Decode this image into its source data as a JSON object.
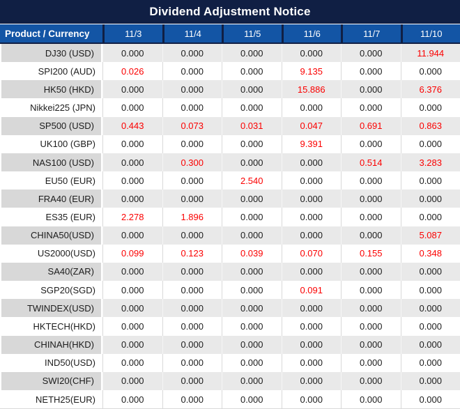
{
  "chart_data": {
    "type": "table",
    "title": "Dividend Adjustment Notice",
    "corner_header": "Product / Currency",
    "date_columns": [
      "11/3",
      "11/4",
      "11/5",
      "11/6",
      "11/7",
      "11/10"
    ],
    "rows": [
      {
        "product": "DJ30 (USD)",
        "values": [
          "0.000",
          "0.000",
          "0.000",
          "0.000",
          "0.000",
          "11.944"
        ],
        "highlighted": [
          false,
          false,
          false,
          false,
          false,
          true
        ]
      },
      {
        "product": "SPI200 (AUD)",
        "values": [
          "0.026",
          "0.000",
          "0.000",
          "9.135",
          "0.000",
          "0.000"
        ],
        "highlighted": [
          true,
          false,
          false,
          true,
          false,
          false
        ]
      },
      {
        "product": "HK50 (HKD)",
        "values": [
          "0.000",
          "0.000",
          "0.000",
          "15.886",
          "0.000",
          "6.376"
        ],
        "highlighted": [
          false,
          false,
          false,
          true,
          false,
          true
        ]
      },
      {
        "product": "Nikkei225 (JPN)",
        "values": [
          "0.000",
          "0.000",
          "0.000",
          "0.000",
          "0.000",
          "0.000"
        ],
        "highlighted": [
          false,
          false,
          false,
          false,
          false,
          false
        ]
      },
      {
        "product": "SP500 (USD)",
        "values": [
          "0.443",
          "0.073",
          "0.031",
          "0.047",
          "0.691",
          "0.863"
        ],
        "highlighted": [
          true,
          true,
          true,
          true,
          true,
          true
        ]
      },
      {
        "product": "UK100 (GBP)",
        "values": [
          "0.000",
          "0.000",
          "0.000",
          "9.391",
          "0.000",
          "0.000"
        ],
        "highlighted": [
          false,
          false,
          false,
          true,
          false,
          false
        ]
      },
      {
        "product": "NAS100 (USD)",
        "values": [
          "0.000",
          "0.300",
          "0.000",
          "0.000",
          "0.514",
          "3.283"
        ],
        "highlighted": [
          false,
          true,
          false,
          false,
          true,
          true
        ]
      },
      {
        "product": "EU50 (EUR)",
        "values": [
          "0.000",
          "0.000",
          "2.540",
          "0.000",
          "0.000",
          "0.000"
        ],
        "highlighted": [
          false,
          false,
          true,
          false,
          false,
          false
        ]
      },
      {
        "product": "FRA40 (EUR)",
        "values": [
          "0.000",
          "0.000",
          "0.000",
          "0.000",
          "0.000",
          "0.000"
        ],
        "highlighted": [
          false,
          false,
          false,
          false,
          false,
          false
        ]
      },
      {
        "product": "ES35 (EUR)",
        "values": [
          "2.278",
          "1.896",
          "0.000",
          "0.000",
          "0.000",
          "0.000"
        ],
        "highlighted": [
          true,
          true,
          false,
          false,
          false,
          false
        ]
      },
      {
        "product": "CHINA50(USD)",
        "values": [
          "0.000",
          "0.000",
          "0.000",
          "0.000",
          "0.000",
          "5.087"
        ],
        "highlighted": [
          false,
          false,
          false,
          false,
          false,
          true
        ]
      },
      {
        "product": "US2000(USD)",
        "values": [
          "0.099",
          "0.123",
          "0.039",
          "0.070",
          "0.155",
          "0.348"
        ],
        "highlighted": [
          true,
          true,
          true,
          true,
          true,
          true
        ]
      },
      {
        "product": "SA40(ZAR)",
        "values": [
          "0.000",
          "0.000",
          "0.000",
          "0.000",
          "0.000",
          "0.000"
        ],
        "highlighted": [
          false,
          false,
          false,
          false,
          false,
          false
        ]
      },
      {
        "product": "SGP20(SGD)",
        "values": [
          "0.000",
          "0.000",
          "0.000",
          "0.091",
          "0.000",
          "0.000"
        ],
        "highlighted": [
          false,
          false,
          false,
          true,
          false,
          false
        ]
      },
      {
        "product": "TWINDEX(USD)",
        "values": [
          "0.000",
          "0.000",
          "0.000",
          "0.000",
          "0.000",
          "0.000"
        ],
        "highlighted": [
          false,
          false,
          false,
          false,
          false,
          false
        ]
      },
      {
        "product": "HKTECH(HKD)",
        "values": [
          "0.000",
          "0.000",
          "0.000",
          "0.000",
          "0.000",
          "0.000"
        ],
        "highlighted": [
          false,
          false,
          false,
          false,
          false,
          false
        ]
      },
      {
        "product": "CHINAH(HKD)",
        "values": [
          "0.000",
          "0.000",
          "0.000",
          "0.000",
          "0.000",
          "0.000"
        ],
        "highlighted": [
          false,
          false,
          false,
          false,
          false,
          false
        ]
      },
      {
        "product": "IND50(USD)",
        "values": [
          "0.000",
          "0.000",
          "0.000",
          "0.000",
          "0.000",
          "0.000"
        ],
        "highlighted": [
          false,
          false,
          false,
          false,
          false,
          false
        ]
      },
      {
        "product": "SWI20(CHF)",
        "values": [
          "0.000",
          "0.000",
          "0.000",
          "0.000",
          "0.000",
          "0.000"
        ],
        "highlighted": [
          false,
          false,
          false,
          false,
          false,
          false
        ]
      },
      {
        "product": "NETH25(EUR)",
        "values": [
          "0.000",
          "0.000",
          "0.000",
          "0.000",
          "0.000",
          "0.000"
        ],
        "highlighted": [
          false,
          false,
          false,
          false,
          false,
          false
        ]
      }
    ]
  },
  "colors": {
    "title_bar_bg": "#101F44",
    "header_bg": "#1355A5",
    "header_separator": "#101F44",
    "row_stripe_label_bg": "#D8D8D8",
    "row_stripe_cell_bg": "#E9E9E9",
    "row_white_bg": "#FFFFFF",
    "grid_line": "#D9D9D9",
    "text_dark": "#1C1C1C",
    "text_red": "#FB0000",
    "text_white": "#FFFFFF"
  }
}
